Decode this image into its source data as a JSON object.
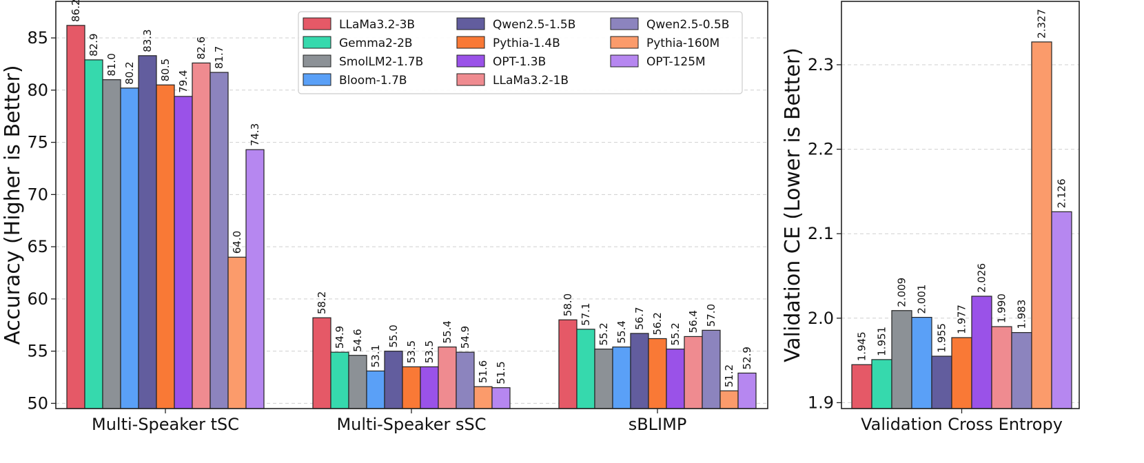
{
  "models": [
    {
      "name": "LLaMa3.2-3B",
      "color": "#e55967"
    },
    {
      "name": "Gemma2-2B",
      "color": "#36d9ad"
    },
    {
      "name": "SmolLM2-1.7B",
      "color": "#8c9196"
    },
    {
      "name": "Bloom-1.7B",
      "color": "#5aa0f7"
    },
    {
      "name": "Qwen2.5-1.5B",
      "color": "#625d9e"
    },
    {
      "name": "Pythia-1.4B",
      "color": "#f97936"
    },
    {
      "name": "OPT-1.3B",
      "color": "#9a52e8"
    },
    {
      "name": "LLaMa3.2-1B",
      "color": "#ef8b90"
    },
    {
      "name": "Qwen2.5-0.5B",
      "color": "#8c84be"
    },
    {
      "name": "Pythia-160M",
      "color": "#fb9b6b"
    },
    {
      "name": "OPT-125M",
      "color": "#b687f0"
    }
  ],
  "chart_data": [
    {
      "type": "bar",
      "ylabel": "Accuracy (Higher is Better)",
      "ylim": [
        49.5,
        88.5
      ],
      "yticks": [
        "50",
        "55",
        "60",
        "65",
        "70",
        "75",
        "80",
        "85"
      ],
      "grid": true,
      "legend": "top-right",
      "categories": [
        "Multi-Speaker tSC",
        "Multi-Speaker sSC",
        "sBLIMP"
      ],
      "series": [
        {
          "name": "LLaMa3.2-3B",
          "values": [
            86.2,
            58.2,
            58.0
          ],
          "labels": [
            "86.2",
            "58.2",
            "58.0"
          ]
        },
        {
          "name": "Gemma2-2B",
          "values": [
            82.9,
            54.9,
            57.1
          ],
          "labels": [
            "82.9",
            "54.9",
            "57.1"
          ]
        },
        {
          "name": "SmolLM2-1.7B",
          "values": [
            81.0,
            54.6,
            55.2
          ],
          "labels": [
            "81.0",
            "54.6",
            "55.2"
          ]
        },
        {
          "name": "Bloom-1.7B",
          "values": [
            80.2,
            53.1,
            55.4
          ],
          "labels": [
            "80.2",
            "53.1",
            "55.4"
          ]
        },
        {
          "name": "Qwen2.5-1.5B",
          "values": [
            83.3,
            55.0,
            56.7
          ],
          "labels": [
            "83.3",
            "55.0",
            "56.7"
          ]
        },
        {
          "name": "Pythia-1.4B",
          "values": [
            80.5,
            53.5,
            56.2
          ],
          "labels": [
            "80.5",
            "53.5",
            "56.2"
          ]
        },
        {
          "name": "OPT-1.3B",
          "values": [
            79.4,
            53.5,
            55.2
          ],
          "labels": [
            "79.4",
            "53.5",
            "55.2"
          ]
        },
        {
          "name": "LLaMa3.2-1B",
          "values": [
            82.6,
            55.4,
            56.4
          ],
          "labels": [
            "82.6",
            "55.4",
            "56.4"
          ]
        },
        {
          "name": "Qwen2.5-0.5B",
          "values": [
            81.7,
            54.9,
            57.0
          ],
          "labels": [
            "81.7",
            "54.9",
            "57.0"
          ]
        },
        {
          "name": "Pythia-160M",
          "values": [
            64.0,
            51.6,
            51.2
          ],
          "labels": [
            "64.0",
            "51.6",
            "51.2"
          ]
        },
        {
          "name": "OPT-125M",
          "values": [
            74.3,
            51.5,
            52.9
          ],
          "labels": [
            "74.3",
            "51.5",
            "52.9"
          ]
        }
      ]
    },
    {
      "type": "bar",
      "ylabel": "Validation CE (Lower is Better)",
      "ylim": [
        1.893,
        2.375
      ],
      "yticks": [
        "1.9",
        "2.0",
        "2.1",
        "2.2",
        "2.3"
      ],
      "grid": true,
      "categories": [
        "Validation Cross Entropy"
      ],
      "series": [
        {
          "name": "LLaMa3.2-3B",
          "values": [
            1.945
          ],
          "labels": [
            "1.945"
          ]
        },
        {
          "name": "Gemma2-2B",
          "values": [
            1.951
          ],
          "labels": [
            "1.951"
          ]
        },
        {
          "name": "SmolLM2-1.7B",
          "values": [
            2.009
          ],
          "labels": [
            "2.009"
          ]
        },
        {
          "name": "Bloom-1.7B",
          "values": [
            2.001
          ],
          "labels": [
            "2.001"
          ]
        },
        {
          "name": "Qwen2.5-1.5B",
          "values": [
            1.955
          ],
          "labels": [
            "1.955"
          ]
        },
        {
          "name": "Pythia-1.4B",
          "values": [
            1.977
          ],
          "labels": [
            "1.977"
          ]
        },
        {
          "name": "OPT-1.3B",
          "values": [
            2.026
          ],
          "labels": [
            "2.026"
          ]
        },
        {
          "name": "LLaMa3.2-1B",
          "values": [
            1.99
          ],
          "labels": [
            "1.990"
          ]
        },
        {
          "name": "Qwen2.5-0.5B",
          "values": [
            1.983
          ],
          "labels": [
            "1.983"
          ]
        },
        {
          "name": "Pythia-160M",
          "values": [
            2.327
          ],
          "labels": [
            "2.327"
          ]
        },
        {
          "name": "OPT-125M",
          "values": [
            2.126
          ],
          "labels": [
            "2.126"
          ]
        }
      ]
    }
  ]
}
